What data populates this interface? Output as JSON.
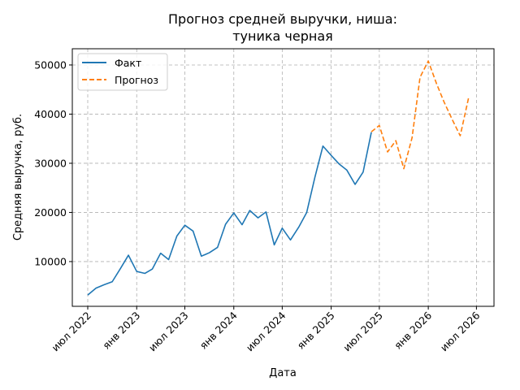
{
  "chart_data": {
    "type": "line",
    "title": [
      "Прогноз средней выручки, ниша:",
      "туника черная"
    ],
    "xlabel": "Дата",
    "ylabel": "Средняя выручка, руб.",
    "x_range": [
      "2022-05-04",
      "2026-09-05"
    ],
    "ylim": [
      900,
      53300
    ],
    "yticks": [
      10000,
      20000,
      30000,
      40000,
      50000
    ],
    "xticks": [
      {
        "date": "2022-07-01",
        "label": "июл 2022"
      },
      {
        "date": "2023-01-01",
        "label": "янв 2023"
      },
      {
        "date": "2023-07-01",
        "label": "июл 2023"
      },
      {
        "date": "2024-01-01",
        "label": "янв 2024"
      },
      {
        "date": "2024-07-01",
        "label": "июл 2024"
      },
      {
        "date": "2025-01-01",
        "label": "янв 2025"
      },
      {
        "date": "2025-07-01",
        "label": "июл 2025"
      },
      {
        "date": "2026-01-01",
        "label": "янв 2026"
      },
      {
        "date": "2026-07-01",
        "label": "июл 2026"
      }
    ],
    "grid": true,
    "legend_position": "top-left",
    "series": [
      {
        "name": "Факт",
        "color": "#1f77b4",
        "dash": "solid",
        "points": [
          [
            "2022-07-01",
            3200
          ],
          [
            "2022-08-01",
            4600
          ],
          [
            "2022-09-01",
            5300
          ],
          [
            "2022-10-01",
            5900
          ],
          [
            "2022-11-01",
            8600
          ],
          [
            "2022-12-01",
            11300
          ],
          [
            "2023-01-01",
            8000
          ],
          [
            "2023-02-01",
            7600
          ],
          [
            "2023-03-01",
            8500
          ],
          [
            "2023-04-01",
            11700
          ],
          [
            "2023-05-01",
            10400
          ],
          [
            "2023-06-01",
            15200
          ],
          [
            "2023-07-01",
            17400
          ],
          [
            "2023-08-01",
            16200
          ],
          [
            "2023-09-01",
            11100
          ],
          [
            "2023-10-01",
            11800
          ],
          [
            "2023-11-01",
            12900
          ],
          [
            "2023-12-01",
            17600
          ],
          [
            "2024-01-01",
            19900
          ],
          [
            "2024-02-01",
            17500
          ],
          [
            "2024-03-01",
            20400
          ],
          [
            "2024-04-01",
            18900
          ],
          [
            "2024-05-01",
            20100
          ],
          [
            "2024-06-01",
            13400
          ],
          [
            "2024-07-01",
            16800
          ],
          [
            "2024-08-01",
            14400
          ],
          [
            "2024-09-01",
            17000
          ],
          [
            "2024-10-01",
            20000
          ],
          [
            "2024-11-01",
            27200
          ],
          [
            "2024-12-01",
            33500
          ],
          [
            "2025-01-01",
            31600
          ],
          [
            "2025-02-01",
            29800
          ],
          [
            "2025-03-01",
            28600
          ],
          [
            "2025-04-01",
            25700
          ],
          [
            "2025-05-01",
            28200
          ],
          [
            "2025-06-01",
            36300
          ]
        ]
      },
      {
        "name": "Прогноз",
        "color": "#ff7f0e",
        "dash": "dashed",
        "points": [
          [
            "2025-06-01",
            36400
          ],
          [
            "2025-07-01",
            37700
          ],
          [
            "2025-08-01",
            32300
          ],
          [
            "2025-09-01",
            34600
          ],
          [
            "2025-10-01",
            28900
          ],
          [
            "2025-11-01",
            35200
          ],
          [
            "2025-12-01",
            47500
          ],
          [
            "2026-01-01",
            50800
          ],
          [
            "2026-02-01",
            46200
          ],
          [
            "2026-03-01",
            42500
          ],
          [
            "2026-04-01",
            38900
          ],
          [
            "2026-05-01",
            35600
          ],
          [
            "2026-06-01",
            43200
          ]
        ]
      }
    ]
  }
}
